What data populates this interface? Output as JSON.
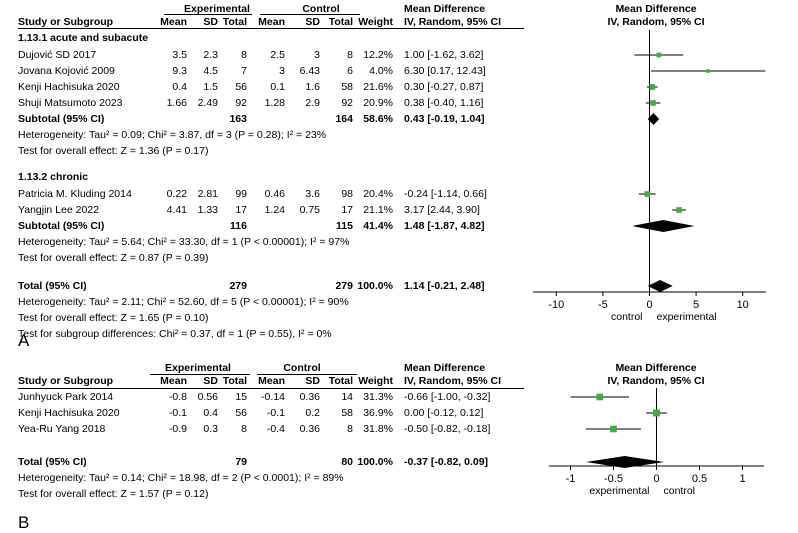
{
  "chart_data": [
    {
      "type": "forest",
      "panel": "A",
      "headers": {
        "study": "Study or Subgroup",
        "experimental": "Experimental",
        "control": "Control",
        "mean": "Mean",
        "sd": "SD",
        "total": "Total",
        "weight": "Weight",
        "md": "Mean Difference",
        "md_method": "IV, Random, 95% CI",
        "plot_title": "Mean Difference",
        "plot_method": "IV, Random, 95% CI"
      },
      "axis": {
        "ticks": [
          -10,
          -5,
          0,
          5,
          10
        ],
        "tick_labels": [
          "-10",
          "-5",
          "0",
          "5",
          "10"
        ],
        "range": [
          -12.5,
          12.5
        ],
        "left_label": "control",
        "right_label": "experimental"
      },
      "subgroups": [
        {
          "title": "1.13.1 acute and subacute",
          "studies": [
            {
              "name": "Dujović SD 2017",
              "e_mean": "3.5",
              "e_sd": "2.3",
              "e_total": "8",
              "c_mean": "2.5",
              "c_sd": "3",
              "c_total": "8",
              "weight": "12.2%",
              "ci_text": "1.00 [-1.62, 3.62]",
              "md": 1.0,
              "lo": -1.62,
              "hi": 3.62
            },
            {
              "name": "Jovana Kojović 2009",
              "e_mean": "9.3",
              "e_sd": "4.5",
              "e_total": "7",
              "c_mean": "3",
              "c_sd": "6.43",
              "c_total": "6",
              "weight": "4.0%",
              "ci_text": "6.30 [0.17, 12.43]",
              "md": 6.3,
              "lo": 0.17,
              "hi": 12.43
            },
            {
              "name": "Kenji Hachisuka 2020",
              "e_mean": "0.4",
              "e_sd": "1.5",
              "e_total": "56",
              "c_mean": "0.1",
              "c_sd": "1.6",
              "c_total": "58",
              "weight": "21.6%",
              "ci_text": "0.30 [-0.27, 0.87]",
              "md": 0.3,
              "lo": -0.27,
              "hi": 0.87
            },
            {
              "name": "Shuji Matsumoto 2023",
              "e_mean": "1.66",
              "e_sd": "2.49",
              "e_total": "92",
              "c_mean": "1.28",
              "c_sd": "2.9",
              "c_total": "92",
              "weight": "20.9%",
              "ci_text": "0.38 [-0.40, 1.16]",
              "md": 0.38,
              "lo": -0.4,
              "hi": 1.16
            }
          ],
          "subtotal": {
            "label": "Subtotal (95% CI)",
            "e_total": "163",
            "c_total": "164",
            "weight": "58.6%",
            "ci_text": "0.43 [-0.19, 1.04]",
            "md": 0.43,
            "lo": -0.19,
            "hi": 1.04
          },
          "heterogeneity": "Heterogeneity: Tau² = 0.09; Chi² = 3.87, df = 3 (P = 0.28); I² = 23%",
          "overall": "Test for overall effect: Z = 1.36 (P = 0.17)"
        },
        {
          "title": "1.13.2 chronic",
          "studies": [
            {
              "name": "Patricia M. Kluding 2014",
              "e_mean": "0.22",
              "e_sd": "2.81",
              "e_total": "99",
              "c_mean": "0.46",
              "c_sd": "3.6",
              "c_total": "98",
              "weight": "20.4%",
              "ci_text": "-0.24 [-1.14, 0.66]",
              "md": -0.24,
              "lo": -1.14,
              "hi": 0.66
            },
            {
              "name": "Yangjin Lee 2022",
              "e_mean": "4.41",
              "e_sd": "1.33",
              "e_total": "17",
              "c_mean": "1.24",
              "c_sd": "0.75",
              "c_total": "17",
              "weight": "21.1%",
              "ci_text": "3.17 [2.44, 3.90]",
              "md": 3.17,
              "lo": 2.44,
              "hi": 3.9
            }
          ],
          "subtotal": {
            "label": "Subtotal (95% CI)",
            "e_total": "116",
            "c_total": "115",
            "weight": "41.4%",
            "ci_text": "1.48 [-1.87, 4.82]",
            "md": 1.48,
            "lo": -1.87,
            "hi": 4.82
          },
          "heterogeneity": "Heterogeneity: Tau² = 5.64; Chi² = 33.30, df = 1 (P < 0.00001); I² = 97%",
          "overall": "Test for overall effect: Z = 0.87 (P = 0.39)"
        }
      ],
      "total": {
        "label": "Total (95% CI)",
        "e_total": "279",
        "c_total": "279",
        "weight": "100.0%",
        "ci_text": "1.14 [-0.21, 2.48]",
        "md": 1.14,
        "lo": -0.21,
        "hi": 2.48
      },
      "footer": [
        "Heterogeneity: Tau² = 2.11; Chi² = 52.60, df = 5 (P < 0.00001); I² = 90%",
        "Test for overall effect: Z = 1.65 (P = 0.10)",
        "Test for subgroup differences: Chi² = 0.37, df = 1 (P = 0.55), I² = 0%"
      ]
    },
    {
      "type": "forest",
      "panel": "B",
      "headers": {
        "study": "Study or Subgroup",
        "experimental": "Experimental",
        "control": "Control",
        "mean": "Mean",
        "sd": "SD",
        "total": "Total",
        "weight": "Weight",
        "md": "Mean Difference",
        "md_method": "IV, Random, 95% CI",
        "plot_title": "Mean Difference",
        "plot_method": "IV, Random, 95% CI"
      },
      "axis": {
        "ticks": [
          -1,
          -0.5,
          0,
          0.5,
          1
        ],
        "tick_labels": [
          "-1",
          "-0.5",
          "0",
          "0.5",
          "1"
        ],
        "range": [
          -1.25,
          1.25
        ],
        "left_label": "experimental",
        "right_label": "control"
      },
      "studies": [
        {
          "name": "Junhyuck Park 2014",
          "e_mean": "-0.8",
          "e_sd": "0.56",
          "e_total": "15",
          "c_mean": "-0.14",
          "c_sd": "0.36",
          "c_total": "14",
          "weight": "31.3%",
          "ci_text": "-0.66 [-1.00, -0.32]",
          "md": -0.66,
          "lo": -1.0,
          "hi": -0.32
        },
        {
          "name": "Kenji Hachisuka 2020",
          "e_mean": "-0.1",
          "e_sd": "0.4",
          "e_total": "56",
          "c_mean": "-0.1",
          "c_sd": "0.2",
          "c_total": "58",
          "weight": "36.9%",
          "ci_text": "0.00 [-0.12, 0.12]",
          "md": 0.0,
          "lo": -0.12,
          "hi": 0.12
        },
        {
          "name": "Yea-Ru Yang 2018",
          "e_mean": "-0.9",
          "e_sd": "0.3",
          "e_total": "8",
          "c_mean": "-0.4",
          "c_sd": "0.36",
          "c_total": "8",
          "weight": "31.8%",
          "ci_text": "-0.50 [-0.82, -0.18]",
          "md": -0.5,
          "lo": -0.82,
          "hi": -0.18
        }
      ],
      "total": {
        "label": "Total (95% CI)",
        "e_total": "79",
        "c_total": "80",
        "weight": "100.0%",
        "ci_text": "-0.37 [-0.82, 0.09]",
        "md": -0.37,
        "lo": -0.82,
        "hi": 0.09
      },
      "footer": [
        "Heterogeneity: Tau² = 0.14; Chi² = 18.98, df = 2 (P < 0.0001); I² = 89%",
        "Test for overall effect: Z = 1.57 (P = 0.12)"
      ]
    }
  ],
  "colors": {
    "marker": "#3cae3c",
    "line": "#000000"
  }
}
